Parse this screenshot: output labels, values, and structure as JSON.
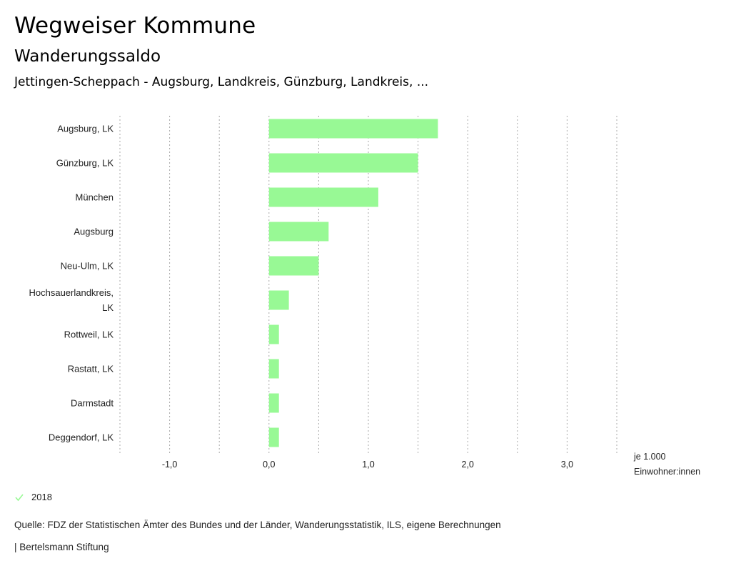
{
  "header": {
    "title": "Wegweiser Kommune",
    "subtitle": "Wanderungssaldo",
    "region": "Jettingen-Scheppach - Augsburg, Landkreis, Günzburg, Landkreis, ..."
  },
  "legend": {
    "items": [
      {
        "label": "2018",
        "color": "#98F995",
        "icon": "check-icon"
      }
    ]
  },
  "footer": {
    "source": "Quelle: FDZ der Statistischen Ämter des Bundes und der Länder, Wanderungsstatistik, ILS, eigene Berechnungen",
    "brand": "| Bertelsmann Stiftung"
  },
  "chart_data": {
    "type": "bar",
    "orientation": "horizontal",
    "title": "Wanderungssaldo",
    "xlabel": "je 1.000 Einwohner:innen",
    "xlabel_lines": [
      "je 1.000",
      "Einwohner:innen"
    ],
    "ylabel": "",
    "xlim": [
      -1.5,
      3.5
    ],
    "gridlines_at": [
      -1.5,
      -1.0,
      -0.5,
      0.0,
      0.5,
      1.0,
      1.5,
      2.0,
      2.5,
      3.0,
      3.5
    ],
    "grid": true,
    "x_ticks": [
      {
        "value": -1.0,
        "label": "-1,0"
      },
      {
        "value": 0.0,
        "label": "0,0"
      },
      {
        "value": 1.0,
        "label": "1,0"
      },
      {
        "value": 2.0,
        "label": "2,0"
      },
      {
        "value": 3.0,
        "label": "3,0"
      }
    ],
    "categories": [
      [
        "Augsburg, LK"
      ],
      [
        "Günzburg, LK"
      ],
      [
        "München"
      ],
      [
        "Augsburg"
      ],
      [
        "Neu-Ulm, LK"
      ],
      [
        "Hochsauerlandkreis,",
        "LK"
      ],
      [
        "Rottweil, LK"
      ],
      [
        "Rastatt, LK"
      ],
      [
        "Darmstadt"
      ],
      [
        "Deggendorf, LK"
      ]
    ],
    "series": [
      {
        "name": "2018",
        "color": "#98F995",
        "values": [
          1.7,
          1.5,
          1.1,
          0.6,
          0.5,
          0.2,
          0.1,
          0.1,
          0.1,
          0.1
        ]
      }
    ],
    "legend_position": "bottom-left"
  }
}
